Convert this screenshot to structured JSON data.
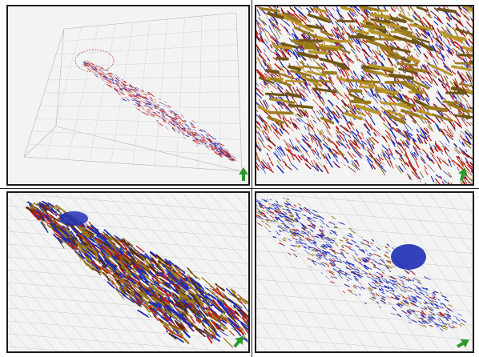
{
  "figure": {
    "panels": [
      {
        "id": "panel-overview",
        "view": "full-structure-fibre-tracks"
      },
      {
        "id": "panel-closeup",
        "view": "zoomed-fibre-tracks"
      },
      {
        "id": "panel-posterior",
        "view": "dense-fibre-fan"
      },
      {
        "id": "panel-sparse",
        "view": "sparse-blue-fibre-tracks"
      }
    ],
    "colors": {
      "red": "#c01a14",
      "blue": "#1e2fb4",
      "gold": "#9a7a1e",
      "white": "#ffffff",
      "grid": "#c9c9c9",
      "panel_bg": "#f3f3f3",
      "axis_gizmo": "#2a9a2a"
    },
    "icons": [
      "axis-orientation-icon"
    ]
  }
}
